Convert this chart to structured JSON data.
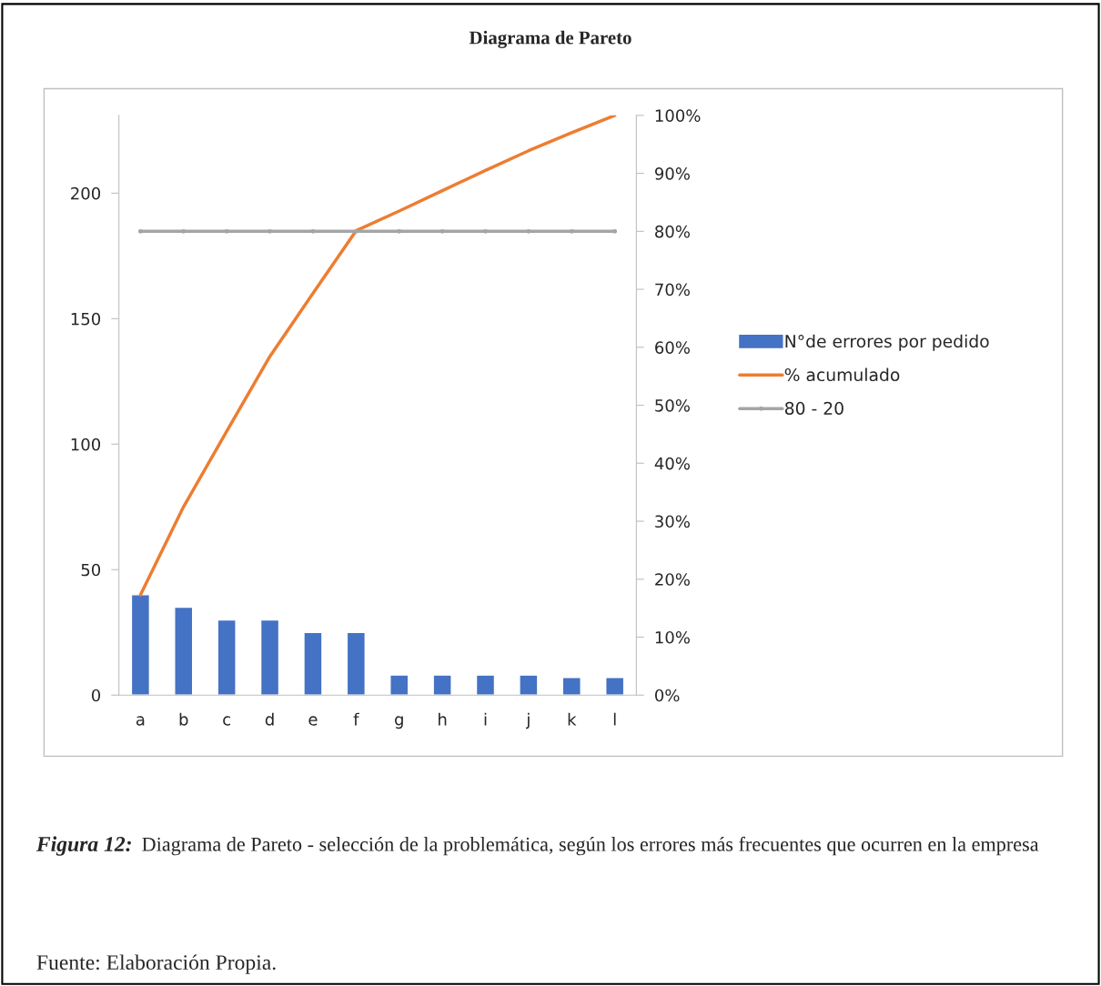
{
  "chart_data": {
    "type": "bar",
    "title": "Diagrama de Pareto",
    "categories": [
      "a",
      "b",
      "c",
      "d",
      "e",
      "f",
      "g",
      "h",
      "i",
      "j",
      "k",
      "l"
    ],
    "series": [
      {
        "name": "N°de errores por pedido",
        "color": "#4472c4",
        "values": [
          40,
          35,
          30,
          30,
          25,
          25,
          8,
          8,
          8,
          8,
          7,
          7
        ]
      },
      {
        "name": "% acumulado",
        "type": "line",
        "axis": "y2",
        "color": "#ed7d31",
        "marker": "none",
        "values": [
          17.3,
          32.5,
          45.5,
          58.4,
          69.3,
          80.1,
          83.5,
          87.0,
          90.5,
          93.9,
          97.0,
          100
        ]
      },
      {
        "name": "80 - 20",
        "type": "line",
        "axis": "y2",
        "color": "#a5a5a5",
        "marker": "circle",
        "values": [
          80,
          80,
          80,
          80,
          80,
          80,
          80,
          80,
          80,
          80,
          80,
          80
        ]
      }
    ],
    "ylim": [
      0,
      231
    ],
    "yticks": [
      0,
      50,
      100,
      150,
      200
    ],
    "y2lim": [
      0,
      100
    ],
    "y2ticks": [
      {
        "value": 0,
        "label": "0%"
      },
      {
        "value": 10,
        "label": "10%"
      },
      {
        "value": 20,
        "label": "20%"
      },
      {
        "value": 30,
        "label": "30%"
      },
      {
        "value": 40,
        "label": "40%"
      },
      {
        "value": 50,
        "label": "50%"
      },
      {
        "value": 60,
        "label": "60%"
      },
      {
        "value": 70,
        "label": "70%"
      },
      {
        "value": 80,
        "label": "80%"
      },
      {
        "value": 90,
        "label": "90%"
      },
      {
        "value": 100,
        "label": "100%"
      }
    ],
    "grid": false,
    "legend": "right",
    "annotations": [
      "Figura 12:",
      "Diagrama de Pareto - selección de la problemática, según los errores más frecuentes que ocurren en la empresa",
      "Fuente: Elaboración Propia."
    ]
  }
}
